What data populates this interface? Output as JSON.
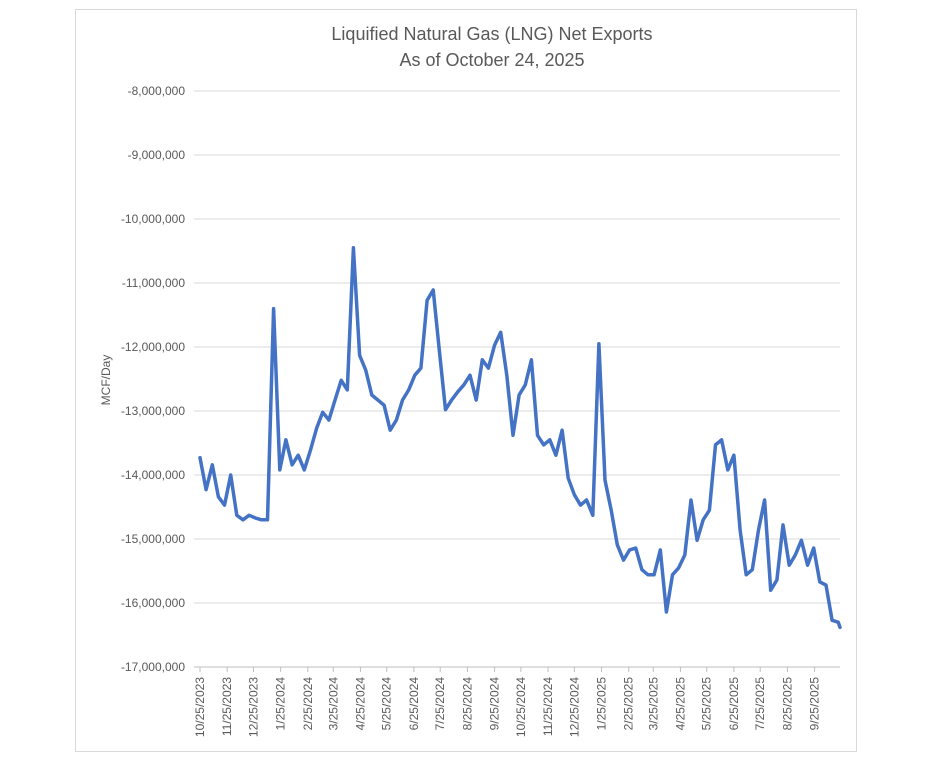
{
  "chart_data": {
    "type": "line",
    "title": "Liquified Natural Gas (LNG) Net Exports",
    "subtitle": "As of October 24, 2025",
    "y_label": "MCF/Day",
    "color": "#4472c4",
    "grid": true,
    "x": [
      "10/25/2023",
      "11/1/2023",
      "11/8/2023",
      "11/15/2023",
      "11/22/2023",
      "11/29/2023",
      "12/6/2023",
      "12/13/2023",
      "12/20/2023",
      "12/27/2023",
      "1/3/2024",
      "1/10/2024",
      "1/17/2024",
      "1/24/2024",
      "1/31/2024",
      "2/7/2024",
      "2/14/2024",
      "2/21/2024",
      "2/28/2024",
      "3/6/2024",
      "3/13/2024",
      "3/20/2024",
      "3/27/2024",
      "4/3/2024",
      "4/10/2024",
      "4/17/2024",
      "4/24/2024",
      "5/1/2024",
      "5/8/2024",
      "5/15/2024",
      "5/22/2024",
      "5/29/2024",
      "6/5/2024",
      "6/12/2024",
      "6/19/2024",
      "6/26/2024",
      "7/3/2024",
      "7/10/2024",
      "7/17/2024",
      "7/24/2024",
      "7/31/2024",
      "8/7/2024",
      "8/14/2024",
      "8/21/2024",
      "8/28/2024",
      "9/4/2024",
      "9/11/2024",
      "9/18/2024",
      "9/25/2024",
      "10/2/2024",
      "10/9/2024",
      "10/16/2024",
      "10/23/2024",
      "10/30/2024",
      "11/6/2024",
      "11/13/2024",
      "11/20/2024",
      "11/27/2024",
      "12/4/2024",
      "12/11/2024",
      "12/18/2024",
      "12/25/2024",
      "1/1/2025",
      "1/8/2025",
      "1/15/2025",
      "1/22/2025",
      "1/29/2025",
      "2/5/2025",
      "2/12/2025",
      "2/19/2025",
      "2/26/2025",
      "3/5/2025",
      "3/12/2025",
      "3/19/2025",
      "3/26/2025",
      "4/2/2025",
      "4/9/2025",
      "4/16/2025",
      "4/23/2025",
      "4/30/2025",
      "5/7/2025",
      "5/14/2025",
      "5/21/2025",
      "5/28/2025",
      "6/4/2025",
      "6/11/2025",
      "6/18/2025",
      "6/25/2025",
      "7/2/2025",
      "7/9/2025",
      "7/16/2025",
      "7/23/2025",
      "7/30/2025",
      "8/6/2025",
      "8/13/2025",
      "8/20/2025",
      "8/27/2025",
      "9/3/2025",
      "9/10/2025",
      "9/17/2025",
      "9/24/2025",
      "10/1/2025",
      "10/8/2025",
      "10/15/2025",
      "10/22/2025",
      "10/24/2025"
    ],
    "values": [
      -13730000,
      -14230000,
      -13840000,
      -14340000,
      -14470000,
      -14000000,
      -14630000,
      -14700000,
      -14630000,
      -14670000,
      -14700000,
      -14700000,
      -11400000,
      -13920000,
      -13450000,
      -13840000,
      -13690000,
      -13920000,
      -13610000,
      -13270000,
      -13020000,
      -13140000,
      -12830000,
      -12520000,
      -12670000,
      -10450000,
      -12130000,
      -12360000,
      -12750000,
      -12830000,
      -12910000,
      -13300000,
      -13140000,
      -12830000,
      -12670000,
      -12440000,
      -12330000,
      -11270000,
      -11110000,
      -12050000,
      -12980000,
      -12830000,
      -12700000,
      -12590000,
      -12440000,
      -12830000,
      -12200000,
      -12330000,
      -11970000,
      -11770000,
      -12440000,
      -13380000,
      -12750000,
      -12590000,
      -12200000,
      -13380000,
      -13530000,
      -13450000,
      -13690000,
      -13300000,
      -14050000,
      -14310000,
      -14470000,
      -14390000,
      -14630000,
      -11950000,
      -14080000,
      -14550000,
      -15090000,
      -15330000,
      -15170000,
      -15140000,
      -15480000,
      -15560000,
      -15560000,
      -15170000,
      -16140000,
      -15560000,
      -15450000,
      -15250000,
      -14390000,
      -15020000,
      -14700000,
      -14550000,
      -13530000,
      -13450000,
      -13920000,
      -13690000,
      -14860000,
      -15560000,
      -15480000,
      -14860000,
      -14390000,
      -15800000,
      -15640000,
      -14780000,
      -15410000,
      -15250000,
      -15020000,
      -15410000,
      -15140000,
      -15670000,
      -15720000,
      -16270000,
      -16300000,
      -16380000
    ],
    "xlim": [
      "10/25/2023",
      "10/24/2025"
    ],
    "xticks": [
      "10/25/2023",
      "11/25/2023",
      "12/25/2023",
      "1/25/2024",
      "2/25/2024",
      "3/25/2024",
      "4/25/2024",
      "5/25/2024",
      "6/25/2024",
      "7/25/2024",
      "8/25/2024",
      "9/25/2024",
      "10/25/2024",
      "11/25/2024",
      "12/25/2024",
      "1/25/2025",
      "2/25/2025",
      "3/25/2025",
      "4/25/2025",
      "5/25/2025",
      "6/25/2025",
      "7/25/2025",
      "8/25/2025",
      "9/25/2025"
    ],
    "ylim": [
      -17000000,
      -8000000
    ],
    "yticks": [
      {
        "value": -8000000,
        "label": "-8,000,000"
      },
      {
        "value": -9000000,
        "label": "-9,000,000"
      },
      {
        "value": -10000000,
        "label": "-10,000,000"
      },
      {
        "value": -11000000,
        "label": "-11,000,000"
      },
      {
        "value": -12000000,
        "label": "-12,000,000"
      },
      {
        "value": -13000000,
        "label": "-13,000,000"
      },
      {
        "value": -14000000,
        "label": "-14,000,000"
      },
      {
        "value": -15000000,
        "label": "-15,000,000"
      },
      {
        "value": -16000000,
        "label": "-16,000,000"
      },
      {
        "value": -17000000,
        "label": "-17,000,000"
      }
    ]
  }
}
